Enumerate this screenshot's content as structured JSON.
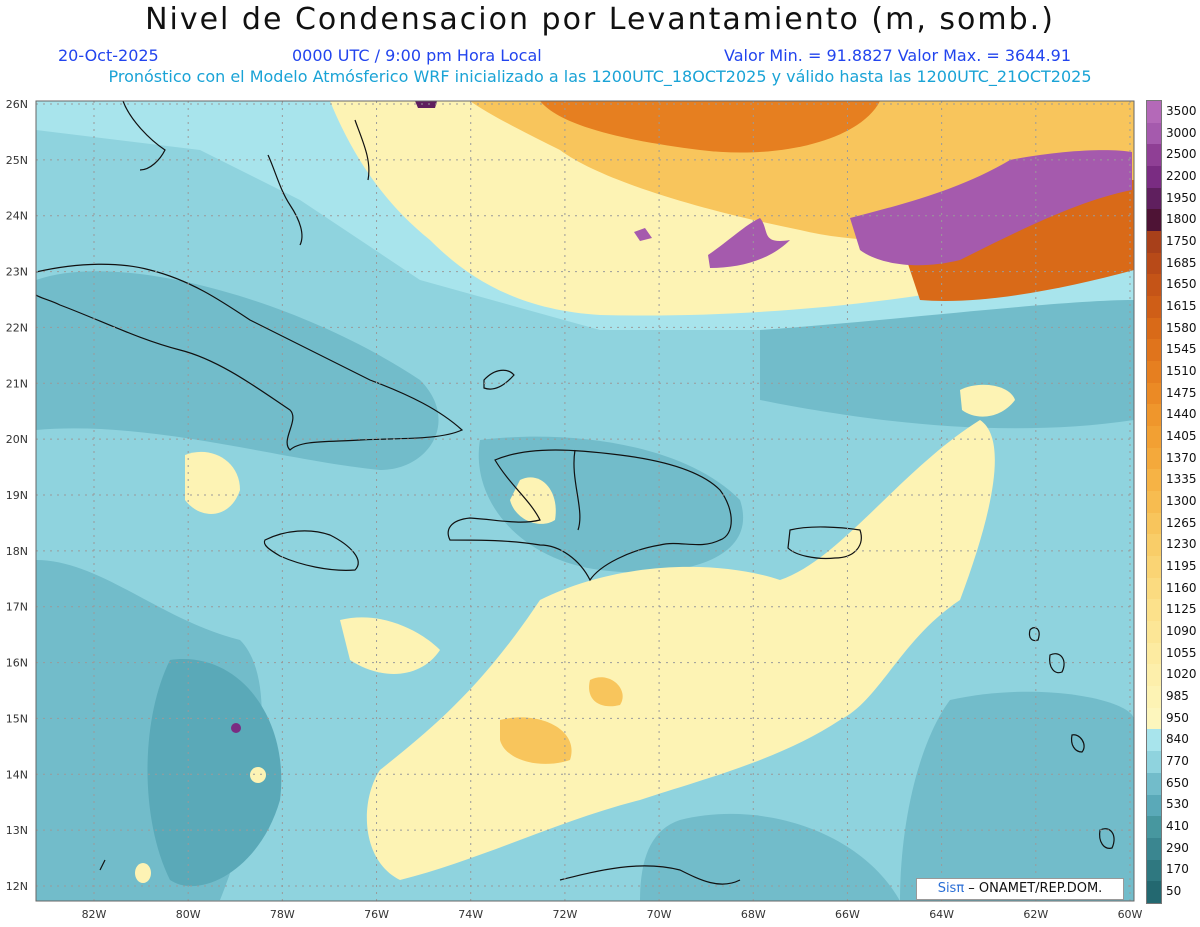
{
  "header": {
    "title": "Nivel de Condensacion por Levantamiento (m, somb.)",
    "date": "20-Oct-2025",
    "time": "0000 UTC / 9:00 pm Hora Local",
    "min_max": "Valor Min. = 91.8827  Valor Max. = 3644.91",
    "description": "Pronóstico con el Modelo Atmósferico WRF inicializado a las 1200UTC_18OCT2025 y válido hasta las  1200UTC_21OCT2025"
  },
  "axes": {
    "lat_labels": [
      "26N",
      "25N",
      "24N",
      "23N",
      "22N",
      "21N",
      "20N",
      "19N",
      "18N",
      "17N",
      "16N",
      "15N",
      "14N",
      "13N",
      "12N"
    ],
    "lon_labels": [
      "82W",
      "80W",
      "78W",
      "76W",
      "74W",
      "72W",
      "70W",
      "68W",
      "66W",
      "64W",
      "62W",
      "60W"
    ]
  },
  "colorbar": {
    "labels": [
      "3500",
      "3000",
      "2500",
      "2200",
      "1950",
      "1800",
      "1750",
      "1685",
      "1650",
      "1615",
      "1580",
      "1545",
      "1510",
      "1475",
      "1440",
      "1405",
      "1370",
      "1335",
      "1300",
      "1265",
      "1230",
      "1195",
      "1160",
      "1125",
      "1090",
      "1055",
      "1020",
      "985",
      "950",
      "840",
      "770",
      "650",
      "530",
      "410",
      "290",
      "170",
      "50"
    ],
    "colors": [
      "#b469b8",
      "#a55aad",
      "#8f3f95",
      "#7a2c82",
      "#5f1f5e",
      "#4e1335",
      "#a8401a",
      "#b84a18",
      "#c55417",
      "#cf5e17",
      "#d96a18",
      "#e0741c",
      "#e67f20",
      "#eb8a25",
      "#ef962c",
      "#f2a033",
      "#f4a93b",
      "#f6b345",
      "#f7bc50",
      "#f8c55c",
      "#f9cd68",
      "#fad474",
      "#fbdb80",
      "#fce18b",
      "#fce696",
      "#fdeba1",
      "#fdefab",
      "#fdf3b4",
      "#fdf6bd",
      "#a8e4ec",
      "#8fd3de",
      "#72bcca",
      "#5aa9b8",
      "#47979f",
      "#3a8690",
      "#2f7880",
      "#236870"
    ]
  },
  "credit": {
    "brand": "Sisπ",
    "org": " – ONAMET/REP.DOM."
  }
}
